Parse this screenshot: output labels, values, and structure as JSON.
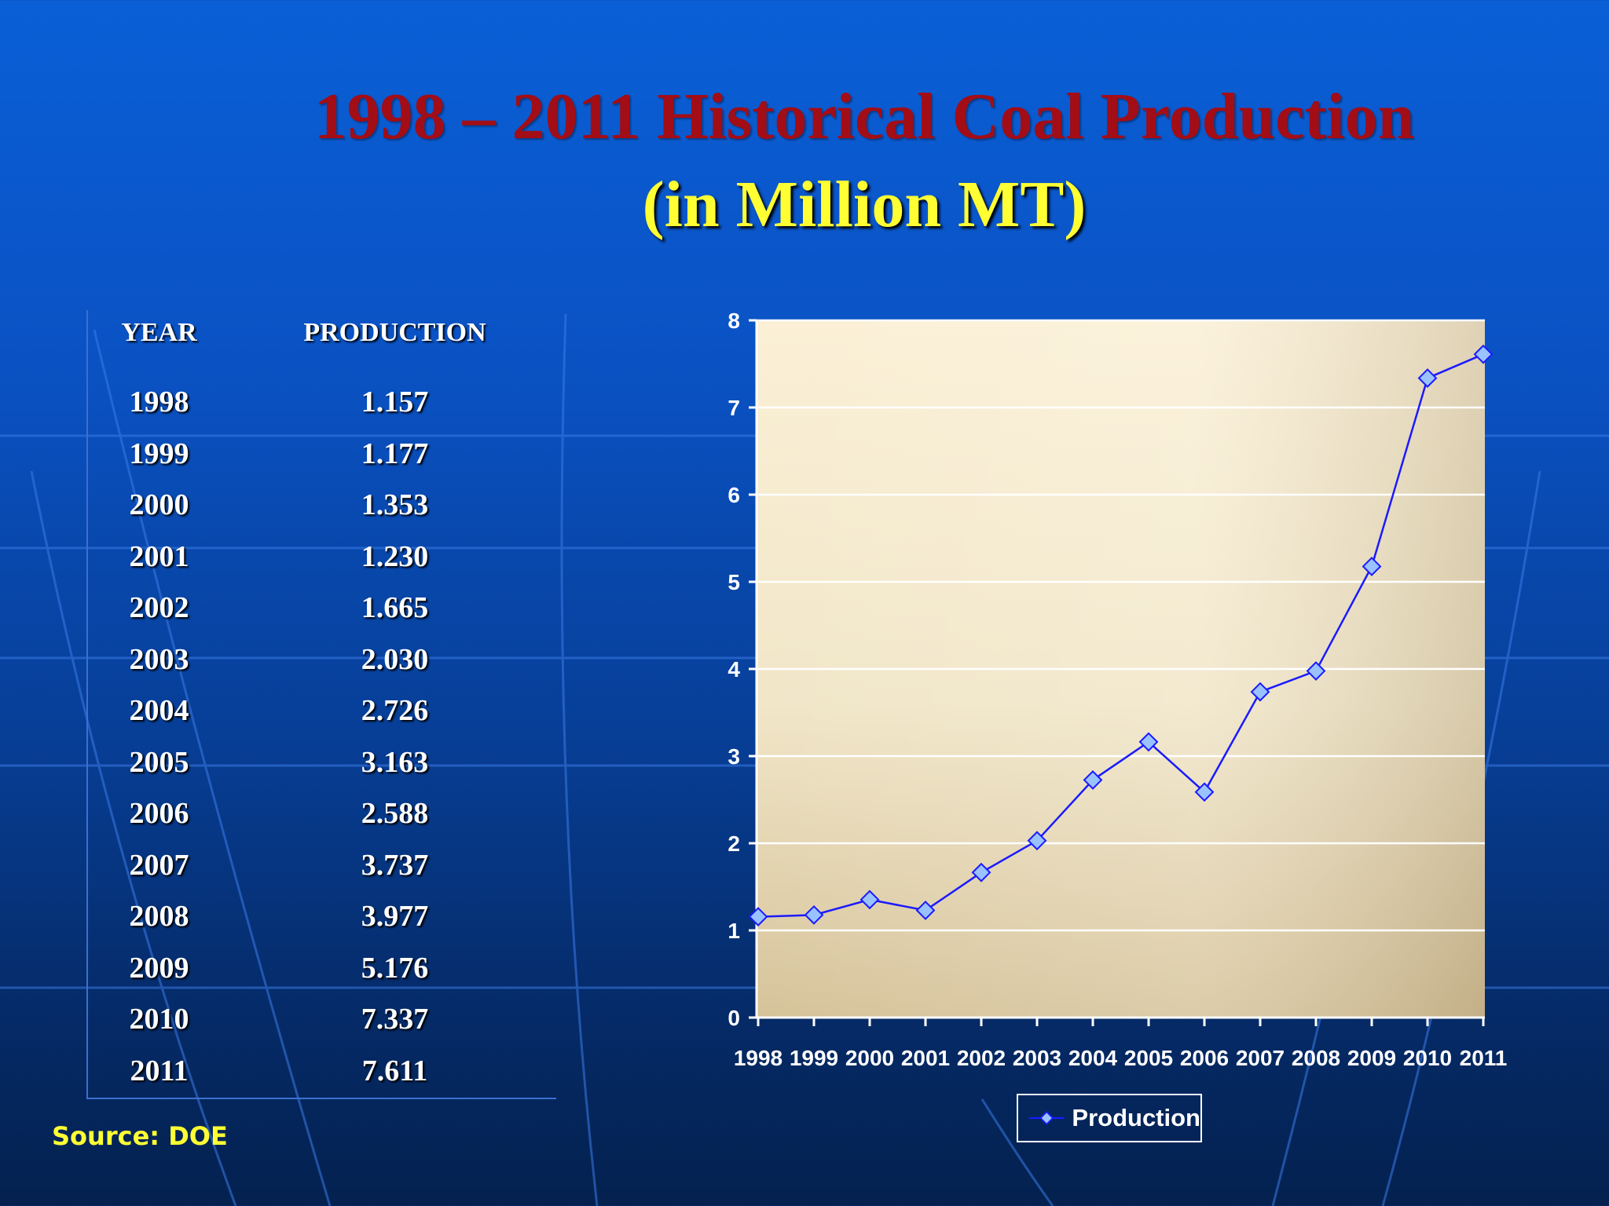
{
  "title": "1998 – 2011 Historical Coal Production",
  "subtitle": "(in Million MT)",
  "table": {
    "headers": [
      "YEAR",
      "PRODUCTION"
    ],
    "rows": [
      [
        "1998",
        "1.157"
      ],
      [
        "1999",
        "1.177"
      ],
      [
        "2000",
        "1.353"
      ],
      [
        "2001",
        "1.230"
      ],
      [
        "2002",
        "1.665"
      ],
      [
        "2003",
        "2.030"
      ],
      [
        "2004",
        "2.726"
      ],
      [
        "2005",
        "3.163"
      ],
      [
        "2006",
        "2.588"
      ],
      [
        "2007",
        "3.737"
      ],
      [
        "2008",
        "3.977"
      ],
      [
        "2009",
        "5.176"
      ],
      [
        "2010",
        "7.337"
      ],
      [
        "2011",
        "7.611"
      ]
    ]
  },
  "source": "Source: DOE",
  "chart_data": {
    "type": "line",
    "title": "",
    "xlabel": "",
    "ylabel": "",
    "categories": [
      "1998",
      "1999",
      "2000",
      "2001",
      "2002",
      "2003",
      "2004",
      "2005",
      "2006",
      "2007",
      "2008",
      "2009",
      "2010",
      "2011"
    ],
    "series": [
      {
        "name": "Production",
        "values": [
          1.157,
          1.177,
          1.353,
          1.23,
          1.665,
          2.03,
          2.726,
          3.163,
          2.588,
          3.737,
          3.977,
          5.176,
          7.337,
          7.611
        ]
      }
    ],
    "ylim": [
      0,
      8
    ],
    "yticks": [
      "0",
      "1",
      "2",
      "3",
      "4",
      "5",
      "6",
      "7",
      "8"
    ],
    "grid": "horizontal",
    "legend": "bottom",
    "colors": {
      "line": "#1a1aff",
      "marker_fill": "#99c2ff",
      "marker_stroke": "#1a1aff",
      "grid": "#ffffff"
    }
  }
}
